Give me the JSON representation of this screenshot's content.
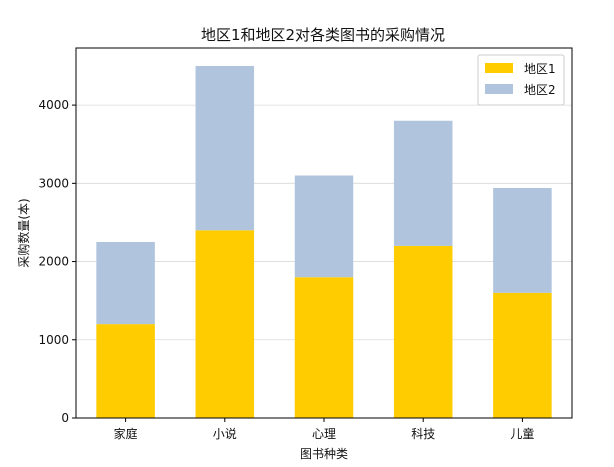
{
  "chart_data": {
    "type": "bar",
    "stacked": true,
    "title": "地区1和地区2对各类图书的采购情况",
    "xlabel": "图书种类",
    "ylabel": "采购数量(本)",
    "categories": [
      "家庭",
      "小说",
      "心理",
      "科技",
      "儿童"
    ],
    "series": [
      {
        "name": "地区1",
        "color": "#ffcc00",
        "values": [
          1200,
          2400,
          1800,
          2200,
          1600
        ]
      },
      {
        "name": "地区2",
        "color": "#b0c4de",
        "values": [
          1050,
          2100,
          1300,
          1600,
          1340
        ]
      }
    ],
    "ylim": [
      0,
      4730
    ],
    "yticks": [
      0,
      1000,
      2000,
      3000,
      4000
    ],
    "grid": "y",
    "legend": "top-right"
  }
}
